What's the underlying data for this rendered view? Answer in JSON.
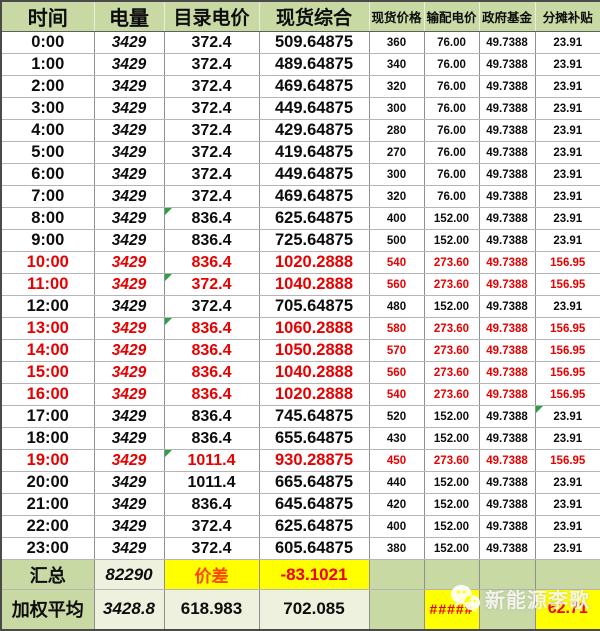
{
  "table": {
    "headers": [
      "时间",
      "电量",
      "目录电价",
      "现货综合",
      "现货价格",
      "输配电价",
      "政府基金",
      "分摊补贴"
    ],
    "rows": [
      {
        "cells": [
          "0:00",
          "3429",
          "372.4",
          "509.64875",
          "360",
          "76.00",
          "49.7388",
          "23.91"
        ],
        "highlight": false,
        "marks": []
      },
      {
        "cells": [
          "1:00",
          "3429",
          "372.4",
          "489.64875",
          "340",
          "76.00",
          "49.7388",
          "23.91"
        ],
        "highlight": false,
        "marks": []
      },
      {
        "cells": [
          "2:00",
          "3429",
          "372.4",
          "469.64875",
          "320",
          "76.00",
          "49.7388",
          "23.91"
        ],
        "highlight": false,
        "marks": []
      },
      {
        "cells": [
          "3:00",
          "3429",
          "372.4",
          "449.64875",
          "300",
          "76.00",
          "49.7388",
          "23.91"
        ],
        "highlight": false,
        "marks": []
      },
      {
        "cells": [
          "4:00",
          "3429",
          "372.4",
          "429.64875",
          "280",
          "76.00",
          "49.7388",
          "23.91"
        ],
        "highlight": false,
        "marks": []
      },
      {
        "cells": [
          "5:00",
          "3429",
          "372.4",
          "419.64875",
          "270",
          "76.00",
          "49.7388",
          "23.91"
        ],
        "highlight": false,
        "marks": []
      },
      {
        "cells": [
          "6:00",
          "3429",
          "372.4",
          "449.64875",
          "300",
          "76.00",
          "49.7388",
          "23.91"
        ],
        "highlight": false,
        "marks": []
      },
      {
        "cells": [
          "7:00",
          "3429",
          "372.4",
          "469.64875",
          "320",
          "76.00",
          "49.7388",
          "23.91"
        ],
        "highlight": false,
        "marks": []
      },
      {
        "cells": [
          "8:00",
          "3429",
          "836.4",
          "625.64875",
          "400",
          "152.00",
          "49.7388",
          "23.91"
        ],
        "highlight": false,
        "marks": [
          2
        ]
      },
      {
        "cells": [
          "9:00",
          "3429",
          "836.4",
          "725.64875",
          "500",
          "152.00",
          "49.7388",
          "23.91"
        ],
        "highlight": false,
        "marks": []
      },
      {
        "cells": [
          "10:00",
          "3429",
          "836.4",
          "1020.2888",
          "540",
          "273.60",
          "49.7388",
          "156.95"
        ],
        "highlight": true,
        "marks": []
      },
      {
        "cells": [
          "11:00",
          "3429",
          "372.4",
          "1040.2888",
          "560",
          "273.60",
          "49.7388",
          "156.95"
        ],
        "highlight": true,
        "marks": [
          2
        ]
      },
      {
        "cells": [
          "12:00",
          "3429",
          "372.4",
          "705.64875",
          "480",
          "152.00",
          "49.7388",
          "23.91"
        ],
        "highlight": false,
        "marks": []
      },
      {
        "cells": [
          "13:00",
          "3429",
          "836.4",
          "1060.2888",
          "580",
          "273.60",
          "49.7388",
          "156.95"
        ],
        "highlight": true,
        "marks": [
          2
        ]
      },
      {
        "cells": [
          "14:00",
          "3429",
          "836.4",
          "1050.2888",
          "570",
          "273.60",
          "49.7388",
          "156.95"
        ],
        "highlight": true,
        "marks": []
      },
      {
        "cells": [
          "15:00",
          "3429",
          "836.4",
          "1040.2888",
          "560",
          "273.60",
          "49.7388",
          "156.95"
        ],
        "highlight": true,
        "marks": []
      },
      {
        "cells": [
          "16:00",
          "3429",
          "836.4",
          "1020.2888",
          "540",
          "273.60",
          "49.7388",
          "156.95"
        ],
        "highlight": true,
        "marks": []
      },
      {
        "cells": [
          "17:00",
          "3429",
          "836.4",
          "745.64875",
          "520",
          "152.00",
          "49.7388",
          "23.91"
        ],
        "highlight": false,
        "marks": [
          7
        ]
      },
      {
        "cells": [
          "18:00",
          "3429",
          "836.4",
          "655.64875",
          "430",
          "152.00",
          "49.7388",
          "23.91"
        ],
        "highlight": false,
        "marks": []
      },
      {
        "cells": [
          "19:00",
          "3429",
          "1011.4",
          "930.28875",
          "450",
          "273.60",
          "49.7388",
          "156.95"
        ],
        "highlight": true,
        "marks": [
          2
        ]
      },
      {
        "cells": [
          "20:00",
          "3429",
          "1011.4",
          "665.64875",
          "440",
          "152.00",
          "49.7388",
          "23.91"
        ],
        "highlight": false,
        "marks": []
      },
      {
        "cells": [
          "21:00",
          "3429",
          "836.4",
          "645.64875",
          "420",
          "152.00",
          "49.7388",
          "23.91"
        ],
        "highlight": false,
        "marks": []
      },
      {
        "cells": [
          "22:00",
          "3429",
          "372.4",
          "625.64875",
          "400",
          "152.00",
          "49.7388",
          "23.91"
        ],
        "highlight": false,
        "marks": []
      },
      {
        "cells": [
          "23:00",
          "3429",
          "372.4",
          "605.64875",
          "380",
          "152.00",
          "49.7388",
          "23.91"
        ],
        "highlight": false,
        "marks": []
      }
    ],
    "summary_row": {
      "label": "汇总",
      "total_volume": "82290",
      "spread_label": "价差",
      "spread_value": "-83.1021"
    },
    "weighted_row": {
      "label": "加权平均",
      "volume": "3428.8",
      "catalog_price": "618.983",
      "spot_composite": "702.085",
      "transmission_overflow": "#####",
      "subsidy": "62.71"
    }
  },
  "watermark": {
    "text": "新能源李歌"
  },
  "colors": {
    "header_green": "#c8d9a4",
    "highlight_red": "#e80000",
    "cell_yellow": "#ffff00",
    "comment_mark_green": "#2f9e44"
  }
}
